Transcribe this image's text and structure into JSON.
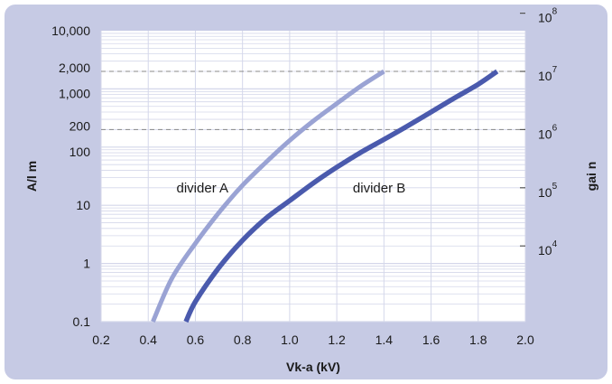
{
  "chart_data": {
    "type": "line",
    "xlabel": "Vk-a (kV)",
    "ylabel": "A/l m",
    "y2label": "gai n",
    "xlim": [
      0.2,
      2.0
    ],
    "ylim": [
      0.1,
      10000
    ],
    "yscale": "log",
    "x_ticks": [
      "0.2",
      "0.4",
      "0.6",
      "0.8",
      "1.0",
      "1.2",
      "1.4",
      "1.6",
      "1.8",
      "2.0"
    ],
    "y_ticks": [
      {
        "value": 0.1,
        "label": "0.1"
      },
      {
        "value": 1,
        "label": "1"
      },
      {
        "value": 10,
        "label": "10"
      },
      {
        "value": 100,
        "label": "100"
      },
      {
        "value": 200,
        "label": "200"
      },
      {
        "value": 1000,
        "label": "1,000"
      },
      {
        "value": 2000,
        "label": "2,000"
      },
      {
        "value": 10000,
        "label": "10,000"
      }
    ],
    "y2_ticks": [
      {
        "value": 2,
        "base": "10",
        "exp": "4"
      },
      {
        "value": 20,
        "base": "10",
        "exp": "5"
      },
      {
        "value": 200,
        "base": "10",
        "exp": "6"
      },
      {
        "value": 2000,
        "base": "10",
        "exp": "7"
      },
      {
        "value": 20000,
        "base": "10",
        "exp": "8"
      }
    ],
    "reference_lines": [
      200,
      2000
    ],
    "grid": true,
    "colors": {
      "frame": "#c6cae4",
      "plot_bg": "#ffffff",
      "grid": "#d4d7ea",
      "ref_line": "#888888",
      "divider_a": "#9aa3d4",
      "divider_b": "#4a5aad"
    },
    "series": [
      {
        "name": "divider A",
        "x": [
          0.42,
          0.5,
          0.6,
          0.7,
          0.8,
          0.9,
          1.0,
          1.1,
          1.2,
          1.3,
          1.4
        ],
        "y": [
          0.1,
          0.55,
          2.2,
          7.5,
          22,
          55,
          130,
          280,
          560,
          1100,
          2000
        ]
      },
      {
        "name": "divider B",
        "x": [
          0.56,
          0.6,
          0.7,
          0.8,
          0.9,
          1.0,
          1.1,
          1.2,
          1.3,
          1.4,
          1.5,
          1.6,
          1.7,
          1.8,
          1.88
        ],
        "y": [
          0.1,
          0.22,
          0.85,
          2.5,
          6,
          12,
          24,
          45,
          80,
          135,
          230,
          400,
          700,
          1200,
          2000
        ]
      }
    ],
    "annotations": [
      {
        "text": "divider A",
        "x": 0.63,
        "y": 20
      },
      {
        "text": "divider B",
        "x": 1.38,
        "y": 20
      }
    ]
  }
}
